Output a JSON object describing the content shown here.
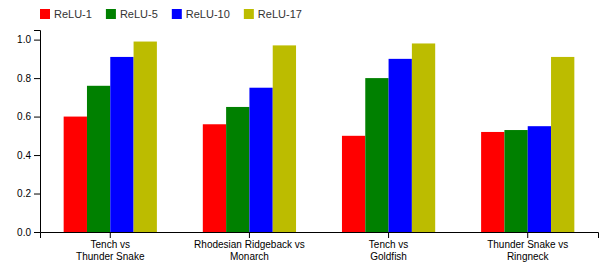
{
  "chart_data": {
    "type": "bar",
    "categories": [
      "Tench vs\nThunder Snake",
      "Rhodesian Ridgeback vs\nMonarch",
      "Tench vs\nGoldfish",
      "Thunder Snake vs\nRingneck"
    ],
    "series": [
      {
        "name": "ReLU-1",
        "color": "#ff0000",
        "values": [
          0.6,
          0.56,
          0.5,
          0.52
        ]
      },
      {
        "name": "ReLU-5",
        "color": "#008000",
        "values": [
          0.76,
          0.65,
          0.8,
          0.53
        ]
      },
      {
        "name": "ReLU-10",
        "color": "#0000ff",
        "values": [
          0.91,
          0.75,
          0.9,
          0.55
        ]
      },
      {
        "name": "ReLU-17",
        "color": "#bcbc00",
        "values": [
          0.99,
          0.97,
          0.98,
          0.91
        ]
      }
    ],
    "ylim": [
      0.0,
      1.05
    ],
    "yticks": [
      {
        "value": 0.0,
        "label": "0.0"
      },
      0.2,
      0.4,
      0.6,
      0.8,
      {
        "value": 1.0,
        "label": "1.0"
      }
    ],
    "legend": "upper left",
    "grid": false
  }
}
